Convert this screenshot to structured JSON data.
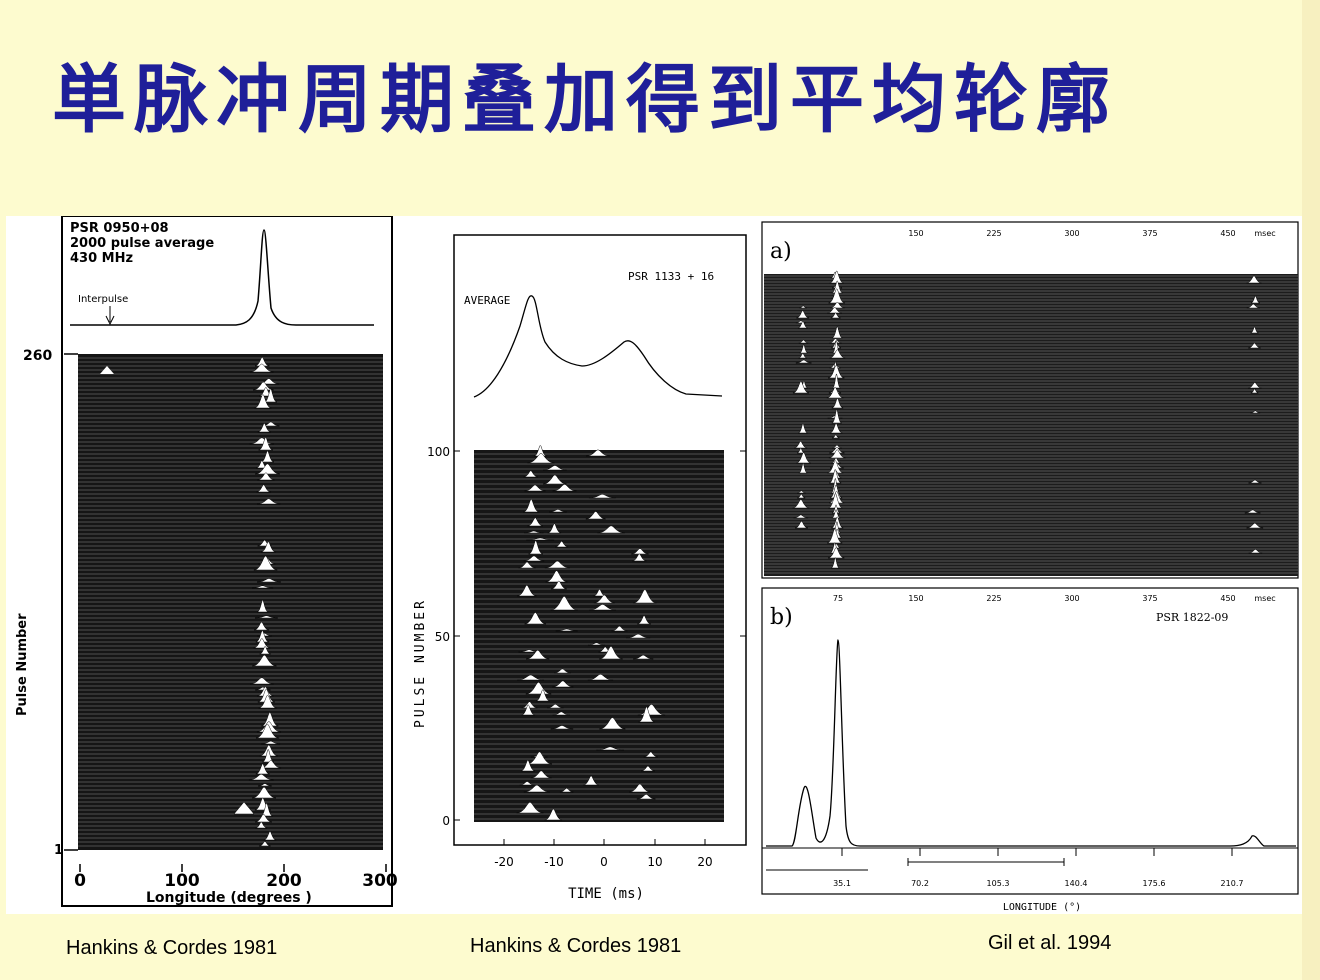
{
  "slide": {
    "title": "単脉冲周期叠加得到平均轮廓",
    "captions": [
      "Hankins & Cordes 1981",
      "Hankins & Cordes 1981",
      "Gil et al. 1994"
    ]
  },
  "figure1": {
    "header_lines": [
      "PSR 0950+08",
      "2000 pulse average",
      "430 MHz"
    ],
    "interpulse_label": "Interpulse",
    "ylabel": "Pulse Number",
    "xlabel": "Longitude (degrees )",
    "yticks": [
      "260",
      "1"
    ],
    "xticks": [
      "0",
      "100",
      "200",
      "300"
    ]
  },
  "figure2": {
    "psr_label": "PSR 1133 + 16",
    "average_label": "AVERAGE",
    "ylabel": "PULSE NUMBER",
    "xlabel": "TIME (ms)",
    "yticks": [
      "100",
      "50",
      "0"
    ],
    "xticks": [
      "-20",
      "-10",
      "0",
      "10",
      "20"
    ]
  },
  "figure3": {
    "panel_a_label": "a)",
    "panel_b_label": "b)",
    "psr_label": "PSR 1822-09",
    "top_ticks_a": [
      "150",
      "225",
      "300",
      "375",
      "450"
    ],
    "top_ticks_b": [
      "75",
      "150",
      "225",
      "300",
      "375",
      "450"
    ],
    "unit": "msec",
    "bottom_ticks": [
      "35.1",
      "70.2",
      "105.3",
      "140.4",
      "175.6",
      "210.7"
    ],
    "xlabel": "LONGITUDE  (°)"
  },
  "colors": {
    "background": "#fdfbcf",
    "title": "#1f1f99",
    "ink": "#000000"
  }
}
